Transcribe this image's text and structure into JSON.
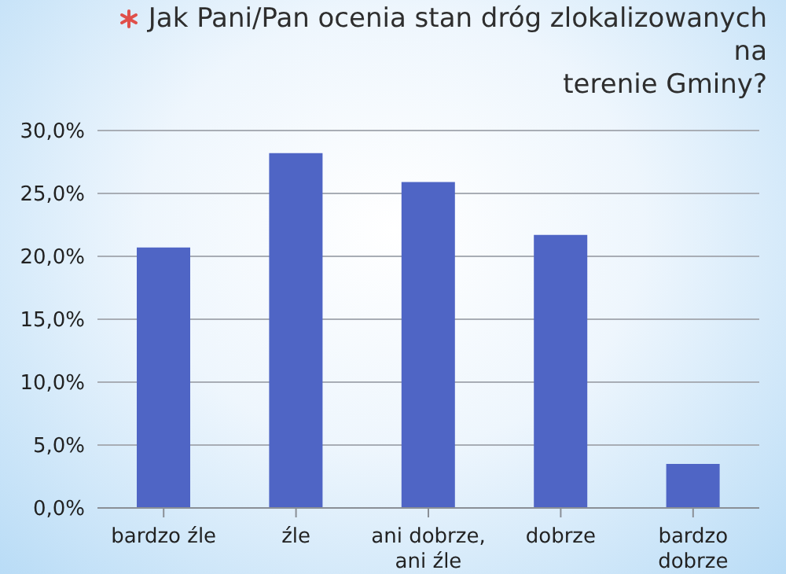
{
  "chart_data": {
    "type": "bar",
    "title": "Jak Pani/Pan ocenia stan dróg zlokalizowanych na terenie Gminy?",
    "categories": [
      "bardzo źle",
      "źle",
      "ani dobrze, ani źle",
      "dobrze",
      "bardzo dobrze"
    ],
    "values": [
      20.7,
      28.2,
      25.9,
      21.7,
      3.5
    ],
    "color": "#4f65c5",
    "ylim": [
      0,
      30
    ],
    "yticks": [
      {
        "value": 0,
        "label": "0,0%"
      },
      {
        "value": 5,
        "label": "5,0%"
      },
      {
        "value": 10,
        "label": "10,0%"
      },
      {
        "value": 15,
        "label": "15,0%"
      },
      {
        "value": 20,
        "label": "20,0%"
      },
      {
        "value": 25,
        "label": "25,0%"
      },
      {
        "value": 30,
        "label": "30,0%"
      }
    ],
    "grid": "y"
  }
}
